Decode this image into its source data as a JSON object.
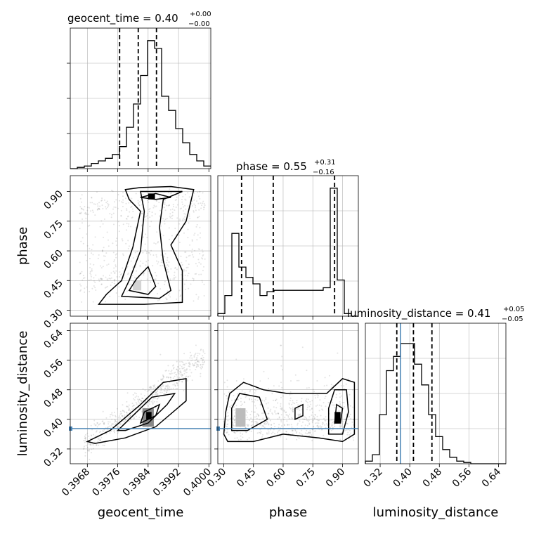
{
  "chart_data": {
    "type": "corner",
    "parameters": [
      "geocent_time",
      "phase",
      "luminosity_distance"
    ],
    "titles": {
      "geocent_time": {
        "label": "geocent_time = 0.40",
        "plus": "+0.00",
        "minus": "−0.00"
      },
      "phase": {
        "label": "phase = 0.55",
        "plus": "+0.31",
        "minus": "−0.16"
      },
      "luminosity_distance": {
        "label": "luminosity_distance = 0.41",
        "plus": "+0.05",
        "minus": "−0.05"
      }
    },
    "axis_labels": {
      "x": [
        "geocent_time",
        "phase",
        "luminosity_distance"
      ],
      "y": [
        "phase",
        "luminosity_distance"
      ]
    },
    "ranges": {
      "geocent_time": [
        0.39635,
        0.40005
      ],
      "phase": [
        0.27,
        0.98
      ],
      "luminosity_distance": [
        0.28,
        0.66
      ]
    },
    "ticks": {
      "geocent_time": [
        0.3968,
        0.3976,
        0.3984,
        0.3992,
        0.4
      ],
      "phase": [
        0.3,
        0.45,
        0.6,
        0.75,
        0.9
      ],
      "luminosity_distance": [
        0.32,
        0.4,
        0.48,
        0.56,
        0.64
      ]
    },
    "tick_labels": {
      "geocent_time": [
        "0.3968",
        "0.3976",
        "0.3984",
        "0.3992",
        "0.4000"
      ],
      "phase": [
        "0.30",
        "0.45",
        "0.60",
        "0.75",
        "0.90"
      ],
      "luminosity_distance": [
        "0.32",
        "0.40",
        "0.48",
        "0.56",
        "0.64"
      ]
    },
    "quantiles": {
      "geocent_time": [
        0.39765,
        0.39814,
        0.39862
      ],
      "phase": [
        0.39,
        0.55,
        0.86
      ],
      "luminosity_distance": [
        0.365,
        0.41,
        0.46
      ]
    },
    "truths": {
      "luminosity_distance": 0.375
    },
    "truth_color": "#4682b4",
    "histograms": {
      "geocent_time": {
        "edges": [
          0.39635,
          0.40005
        ],
        "counts": [
          0,
          0.01,
          0.02,
          0.04,
          0.06,
          0.08,
          0.11,
          0.17,
          0.32,
          0.5,
          0.72,
          0.99,
          0.93,
          0.56,
          0.45,
          0.31,
          0.2,
          0.11,
          0.06,
          0.02
        ]
      },
      "phase": {
        "edges": [
          0.27,
          0.98
        ],
        "counts": [
          0.02,
          0.16,
          0.64,
          0.38,
          0.3,
          0.25,
          0.16,
          0.19,
          0.2,
          0.2,
          0.2,
          0.2,
          0.2,
          0.2,
          0.2,
          0.22,
          0.99,
          0.28,
          0.02,
          0.0
        ]
      },
      "luminosity_distance": {
        "edges": [
          0.28,
          0.66
        ],
        "counts": [
          0.02,
          0.07,
          0.38,
          0.72,
          0.83,
          0.93,
          0.93,
          0.77,
          0.61,
          0.38,
          0.21,
          0.11,
          0.05,
          0.02,
          0.01,
          0.0,
          0.0,
          0.0,
          0.0,
          0.0
        ]
      }
    },
    "grid": true,
    "colors": {
      "line": "#000000",
      "grid": "#b0b0b0",
      "scatter": "#808080"
    }
  }
}
